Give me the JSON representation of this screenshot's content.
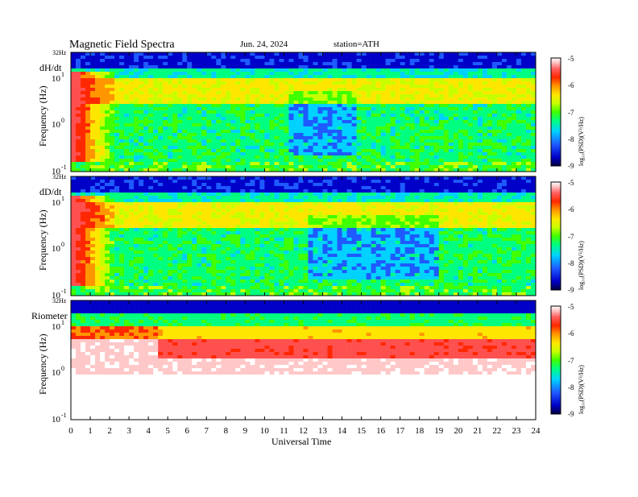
{
  "header": {
    "title": "Magnetic  Field  Spectra",
    "date": "Jun. 24, 2024",
    "station": "station=ATH"
  },
  "colors": {
    "scale": [
      "#000040",
      "#0000c8",
      "#1e5aff",
      "#00d2ff",
      "#00ff80",
      "#40ff00",
      "#c8ff00",
      "#ffe600",
      "#ff9600",
      "#ff2800",
      "#ff5050",
      "#ffc8c8",
      "#ffffff"
    ]
  },
  "chart_data": [
    {
      "type": "heatmap",
      "panel_label": "dH/dt",
      "ylabel": "Frequency  (Hz)",
      "y_ticks": [
        "32Hz",
        "10",
        "10",
        "10"
      ],
      "y_tick_exps": [
        "",
        "1",
        "0",
        "-1"
      ],
      "xlim": [
        0,
        24
      ],
      "colorbar": {
        "ticks": [
          "-5",
          "-6",
          "-7",
          "-8",
          "-9"
        ],
        "label": "log₁₀(PSD)(V²/Hz)",
        "range": [
          -9,
          -5
        ]
      }
    },
    {
      "type": "heatmap",
      "panel_label": "dD/dt",
      "ylabel": "Frequency  (Hz)",
      "y_ticks": [
        "32Hz",
        "10",
        "10",
        "10"
      ],
      "y_tick_exps": [
        "",
        "1",
        "0",
        "-1"
      ],
      "xlim": [
        0,
        24
      ],
      "colorbar": {
        "ticks": [
          "-5",
          "-6",
          "-7",
          "-8",
          "-9"
        ],
        "label": "log₁₀(PSD)(V²/Hz)",
        "range": [
          -9,
          -5
        ]
      }
    },
    {
      "type": "heatmap",
      "panel_label": "Riometer",
      "ylabel": "Frequency  (Hz)",
      "y_ticks": [
        "32Hz",
        "10",
        "10",
        "10"
      ],
      "y_tick_exps": [
        "",
        "1",
        "0",
        "-1"
      ],
      "xlim": [
        0,
        24
      ],
      "x_ticks": [
        "0",
        "1",
        "2",
        "3",
        "4",
        "5",
        "6",
        "7",
        "8",
        "9",
        "10",
        "11",
        "12",
        "13",
        "14",
        "15",
        "16",
        "17",
        "18",
        "19",
        "20",
        "21",
        "22",
        "23",
        "24"
      ],
      "xlabel": "Universal  Time",
      "colorbar": {
        "ticks": [
          "-5",
          "-6",
          "-7",
          "-8",
          "-9"
        ],
        "label": "log₁₀(PSD)(V²/Hz)",
        "range": [
          -9,
          -5
        ]
      }
    }
  ]
}
